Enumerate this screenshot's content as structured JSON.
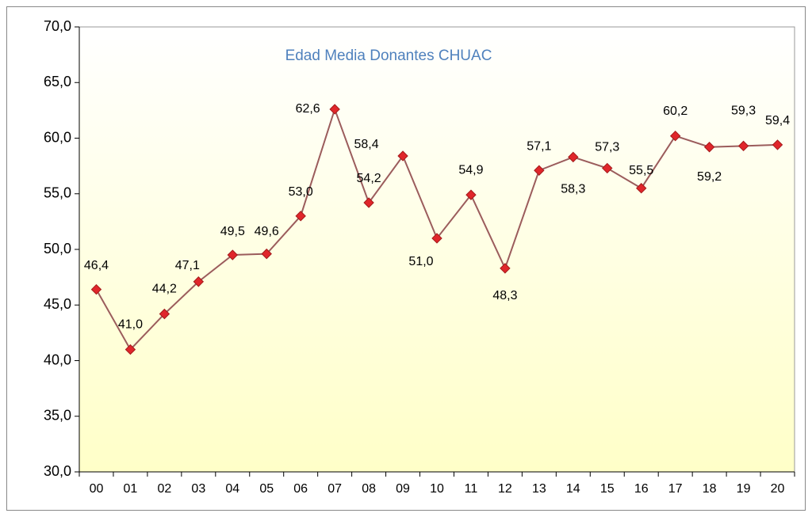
{
  "chart_data": {
    "type": "line",
    "title": "Edad Media Donantes CHUAC",
    "categories": [
      "00",
      "01",
      "02",
      "03",
      "04",
      "05",
      "06",
      "07",
      "08",
      "09",
      "10",
      "11",
      "12",
      "13",
      "14",
      "15",
      "16",
      "17",
      "18",
      "19",
      "20"
    ],
    "series": [
      {
        "name": "Edad Media",
        "color": "#9b5c5c",
        "marker_color": "#e0262b",
        "values": [
          46.4,
          41.0,
          44.2,
          47.1,
          49.5,
          49.6,
          53.0,
          62.6,
          54.2,
          58.4,
          51.0,
          54.9,
          48.3,
          57.1,
          58.3,
          57.3,
          55.5,
          60.2,
          59.2,
          59.3,
          59.4
        ],
        "value_labels": [
          "46,4",
          "41,0",
          "44,2",
          "47,1",
          "49,5",
          "49,6",
          "53,0",
          "62,6",
          "54,2",
          "58,4",
          "51,0",
          "54,9",
          "48,3",
          "57,1",
          "58,3",
          "57,3",
          "55,5",
          "60,2",
          "59,2",
          "59,3",
          "59,4"
        ]
      }
    ],
    "ylim": [
      30,
      70
    ],
    "yticks": [
      {
        "value": 30,
        "label": "30,0"
      },
      {
        "value": 35,
        "label": "35,0"
      },
      {
        "value": 40,
        "label": "40,0"
      },
      {
        "value": 45,
        "label": "45,0"
      },
      {
        "value": 50,
        "label": "50,0"
      },
      {
        "value": 55,
        "label": "55,0"
      },
      {
        "value": 60,
        "label": "60,0"
      },
      {
        "value": 65,
        "label": "65,0"
      },
      {
        "value": 70,
        "label": "70,0"
      }
    ],
    "grid": false
  }
}
